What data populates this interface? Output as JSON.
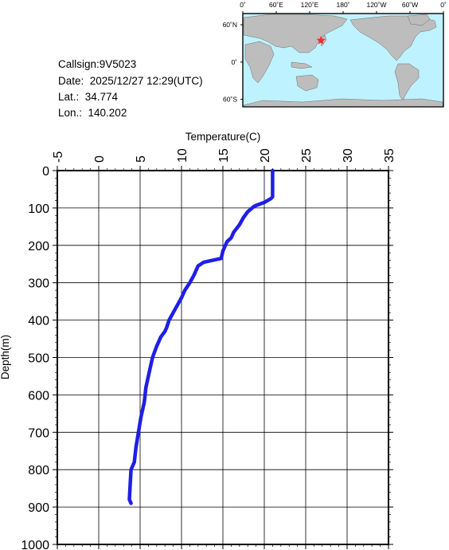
{
  "info": {
    "callsign": "Callsign:9V5023",
    "date": "Date:  2025/12/27 12:29(UTC)",
    "lat": "Lat.:  34.774",
    "lon": "Lon.:  140.202"
  },
  "map": {
    "lon_labels": [
      "0˚",
      "60˚E",
      "120˚E",
      "180˚",
      "120˚W",
      "60˚W",
      "0˚"
    ],
    "lat_labels": [
      "60˚N",
      "0˚",
      "60˚S"
    ],
    "ocean_color": "#bff2ff",
    "land_color": "#bdbdbd",
    "marker": {
      "lon": 140.202,
      "lat": 34.774,
      "color": "#ff2a2a",
      "symbol": "star"
    }
  },
  "chart_data": {
    "type": "line",
    "title": "",
    "xlabel": "Temperature(C)",
    "ylabel": "Depth(m)",
    "xlim": [
      -5,
      35
    ],
    "ylim": [
      1000,
      0
    ],
    "x_ticks": [
      "-5",
      "0",
      "5",
      "10",
      "15",
      "20",
      "25",
      "30",
      "35"
    ],
    "y_ticks": [
      "0",
      "100",
      "200",
      "300",
      "400",
      "500",
      "600",
      "700",
      "800",
      "900",
      "1000"
    ],
    "grid": true,
    "line_color": "#1f1fe6",
    "series": [
      {
        "x": [
          21.0,
          21.0,
          21.0,
          20.8,
          20.0,
          18.8,
          18.0,
          17.5,
          17.0,
          16.3,
          16.0,
          15.5,
          15.2,
          15.0,
          14.8,
          12.7,
          12.0,
          11.8,
          11.5,
          11.0,
          10.4,
          10.0,
          9.5,
          9.0,
          8.5,
          8.2,
          8.0,
          7.5,
          7.0,
          6.5,
          6.1,
          5.7,
          5.5,
          5.1,
          4.8,
          4.5,
          4.3,
          3.9,
          3.8,
          3.7,
          3.9
        ],
        "y": [
          0,
          25,
          70,
          75,
          85,
          95,
          110,
          125,
          145,
          165,
          180,
          190,
          205,
          215,
          235,
          245,
          255,
          265,
          280,
          300,
          320,
          340,
          360,
          380,
          400,
          420,
          430,
          445,
          470,
          500,
          540,
          580,
          620,
          660,
          700,
          740,
          780,
          800,
          840,
          880,
          890
        ]
      }
    ]
  }
}
